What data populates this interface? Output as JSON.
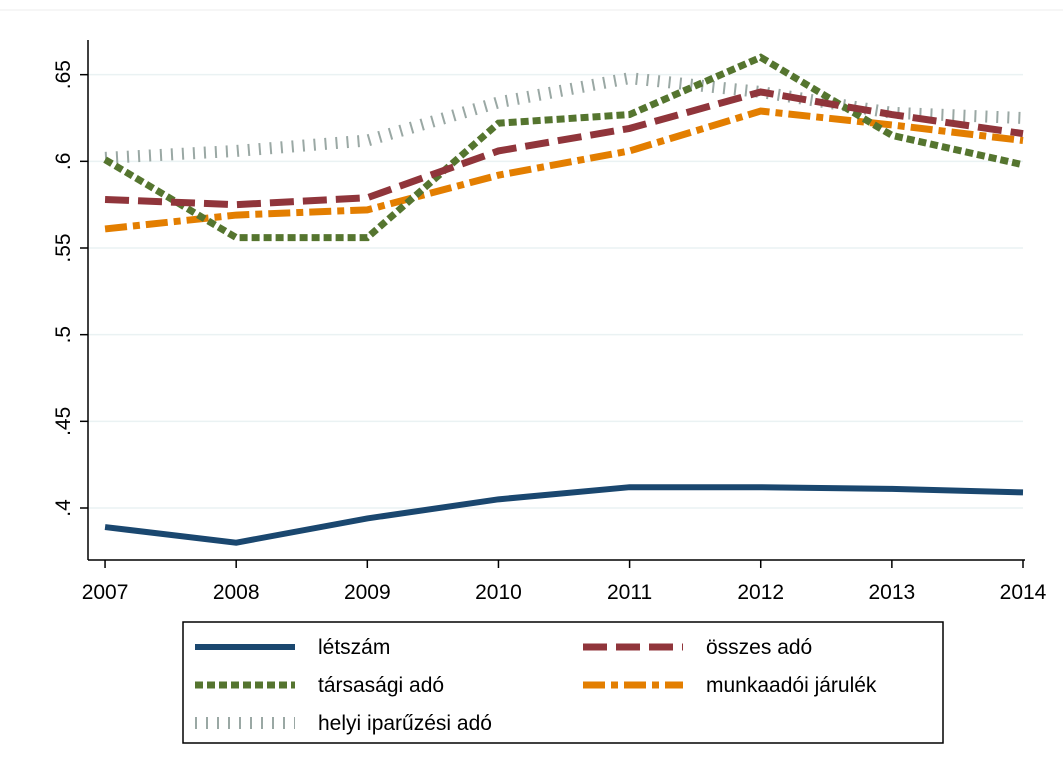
{
  "chart_data": {
    "type": "line",
    "x": [
      2007,
      2008,
      2009,
      2010,
      2011,
      2012,
      2013,
      2014
    ],
    "xlim": [
      2006.87,
      2014
    ],
    "xticks": [
      2007,
      2008,
      2009,
      2010,
      2011,
      2012,
      2013,
      2014
    ],
    "ylim": [
      0.37,
      0.67
    ],
    "yticks": [
      {
        "value": 0.4,
        "label": ".4"
      },
      {
        "value": 0.45,
        "label": ".45"
      },
      {
        "value": 0.5,
        "label": ".5"
      },
      {
        "value": 0.55,
        "label": ".55"
      },
      {
        "value": 0.6,
        "label": ".6"
      },
      {
        "value": 0.65,
        "label": ".65"
      }
    ],
    "grid": true,
    "legend": "bottom",
    "series": [
      {
        "name": "létszám",
        "color": "#1a476f",
        "style": "solid",
        "values": [
          0.389,
          0.38,
          0.394,
          0.405,
          0.412,
          0.412,
          0.411,
          0.409
        ]
      },
      {
        "name": "összes adó",
        "color": "#90353b",
        "style": "dash",
        "values": [
          0.578,
          0.575,
          0.579,
          0.606,
          0.619,
          0.64,
          0.627,
          0.616
        ]
      },
      {
        "name": "társasági adó",
        "color": "#55752f",
        "style": "dot",
        "values": [
          0.601,
          0.556,
          0.556,
          0.622,
          0.627,
          0.66,
          0.615,
          0.598
        ]
      },
      {
        "name": "munkaadói járulék",
        "color": "#e37e00",
        "style": "dashdot",
        "values": [
          0.561,
          0.569,
          0.572,
          0.592,
          0.606,
          0.629,
          0.621,
          0.612
        ]
      },
      {
        "name": "helyi iparűzési adó",
        "color": "#9aa8a4",
        "style": "tick",
        "values": [
          0.602,
          0.606,
          0.612,
          0.634,
          0.648,
          0.64,
          0.628,
          0.625
        ]
      }
    ]
  }
}
